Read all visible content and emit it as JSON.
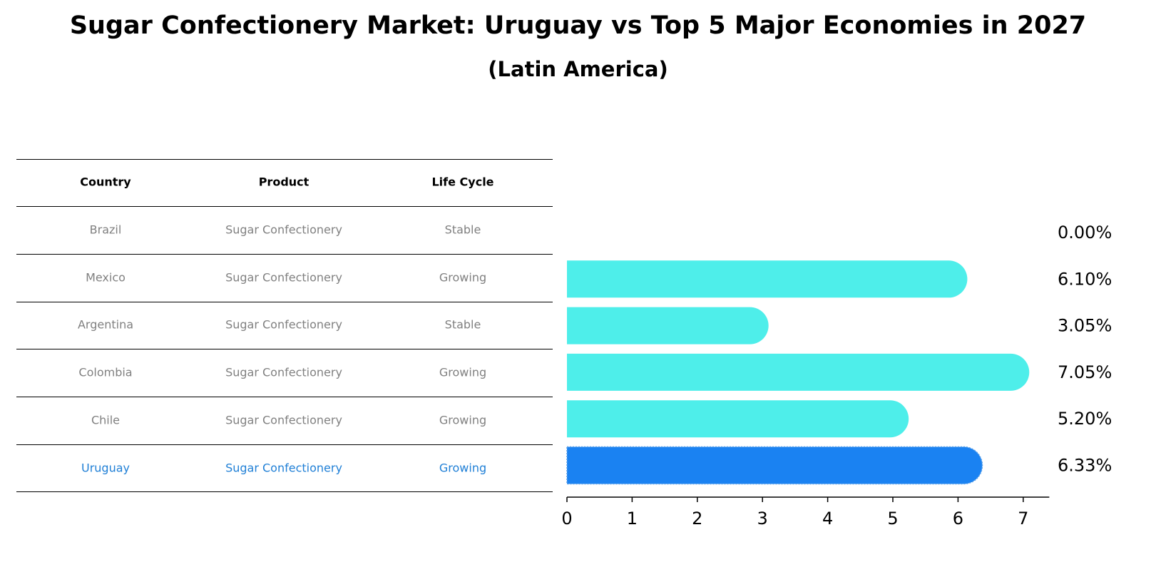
{
  "title": "Sugar Confectionery Market: Uruguay vs Top 5 Major Economies in 2027",
  "subtitle": "(Latin America)",
  "table": {
    "headers": [
      "Country",
      "Product",
      "Life Cycle"
    ],
    "rows": [
      [
        "Brazil",
        "Sugar Confectionery",
        "Stable"
      ],
      [
        "Mexico",
        "Sugar Confectionery",
        "Growing"
      ],
      [
        "Argentina",
        "Sugar Confectionery",
        "Stable"
      ],
      [
        "Colombia",
        "Sugar Confectionery",
        "Growing"
      ],
      [
        "Chile",
        "Sugar Confectionery",
        "Growing"
      ],
      [
        "Uruguay",
        "Sugar Confectionery",
        "Growing"
      ]
    ],
    "highlight_row": 5,
    "text_color": "#808080",
    "highlight_color": "#1f7fd6"
  },
  "chart_data": {
    "type": "bar",
    "orientation": "horizontal",
    "categories": [
      "Brazil",
      "Mexico",
      "Argentina",
      "Colombia",
      "Chile",
      "Uruguay"
    ],
    "values": [
      0.0,
      6.1,
      3.05,
      7.05,
      5.2,
      6.33
    ],
    "data_labels": [
      "0.00%",
      "6.10%",
      "3.05%",
      "7.05%",
      "5.20%",
      "6.33%"
    ],
    "xticks": [
      "0",
      "1",
      "2",
      "3",
      "4",
      "5",
      "6",
      "7"
    ],
    "xlim": [
      0,
      7.4
    ],
    "bar_color": "#4eeeea",
    "highlight_color": "#1a82f2",
    "highlight_index": 5,
    "grid": false
  }
}
